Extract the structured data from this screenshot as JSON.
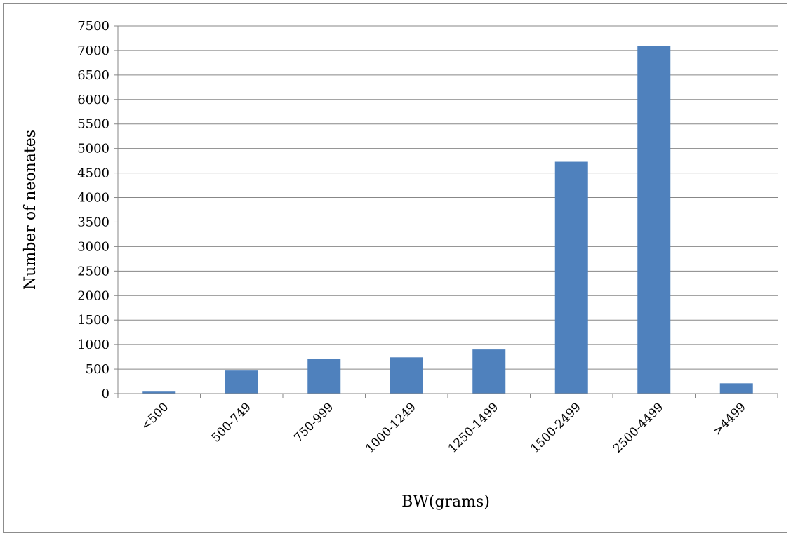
{
  "chart_data": {
    "type": "bar",
    "title": "",
    "xlabel": "BW(grams)",
    "ylabel": "Number of neonates",
    "categories": [
      "<500",
      "500-749",
      "750-999",
      "1000-1249",
      "1250-1499",
      "1500-2499",
      "2500-4499",
      ">4499"
    ],
    "values": [
      40,
      470,
      710,
      740,
      900,
      4730,
      7090,
      210
    ],
    "ylim": [
      0,
      7500
    ],
    "yticks": [
      0,
      500,
      1000,
      1500,
      2000,
      2500,
      3000,
      3500,
      4000,
      4500,
      5000,
      5500,
      6000,
      6500,
      7000,
      7500
    ],
    "ytick_labels": [
      "0",
      "500",
      "1000",
      "1500",
      "2000",
      "2500",
      "3000",
      "3500",
      "4000",
      "4500",
      "5000",
      "5500",
      "6000",
      "6500",
      "7000",
      "7500"
    ],
    "grid": true,
    "legend": "none",
    "bar_color": "#4f81bd"
  }
}
